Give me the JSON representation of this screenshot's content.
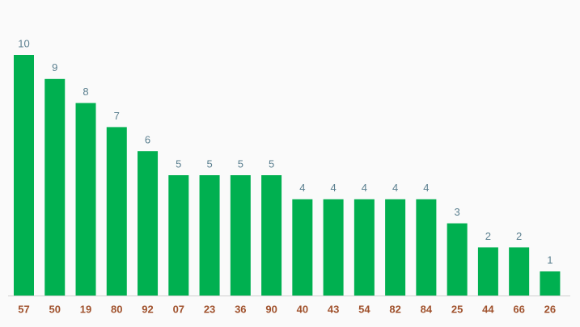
{
  "chart_data": {
    "type": "bar",
    "categories": [
      "57",
      "50",
      "19",
      "80",
      "92",
      "07",
      "23",
      "36",
      "90",
      "40",
      "43",
      "54",
      "82",
      "84",
      "25",
      "44",
      "66",
      "26"
    ],
    "values": [
      10,
      9,
      8,
      7,
      6,
      5,
      5,
      5,
      5,
      4,
      4,
      4,
      4,
      4,
      3,
      2,
      2,
      1
    ],
    "color": "#00b050"
  }
}
